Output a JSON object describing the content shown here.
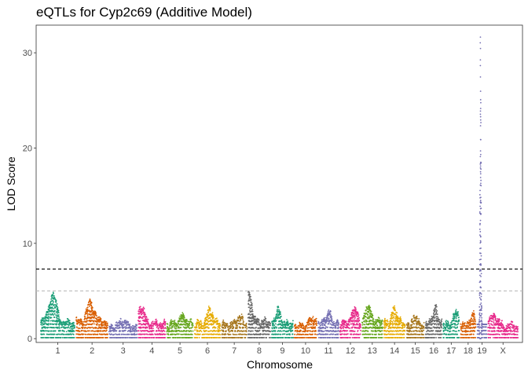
{
  "chart_data": {
    "type": "scatter",
    "title": "eQTLs for Cyp2c69 (Additive Model)",
    "xlabel": "Chromosome",
    "ylabel": "LOD Score",
    "ylim": [
      -0.4,
      32.9
    ],
    "yticks": [
      0,
      10,
      20,
      30
    ],
    "grid": false,
    "legend": "none",
    "thresholds": [
      {
        "lod": 7.3,
        "color": "#000000",
        "style": "dashed"
      },
      {
        "lod": 5.0,
        "color": "#bdbdbd",
        "style": "dashed"
      }
    ],
    "chromosomes": [
      {
        "name": "1",
        "length": 195,
        "color": "#1b9e77",
        "base": 1.6,
        "peak": 4.5,
        "peak_pos": 0.35
      },
      {
        "name": "2",
        "length": 182,
        "color": "#d95f02",
        "base": 1.7,
        "peak": 3.7,
        "peak_pos": 0.45
      },
      {
        "name": "3",
        "length": 160,
        "color": "#7570b3",
        "base": 1.2,
        "peak": 1.9,
        "peak_pos": 0.5
      },
      {
        "name": "4",
        "length": 157,
        "color": "#e7298a",
        "base": 1.5,
        "peak": 3.3,
        "peak_pos": 0.1
      },
      {
        "name": "5",
        "length": 152,
        "color": "#66a61e",
        "base": 1.5,
        "peak": 2.3,
        "peak_pos": 0.6
      },
      {
        "name": "6",
        "length": 150,
        "color": "#e6ab02",
        "base": 1.5,
        "peak": 3.0,
        "peak_pos": 0.6
      },
      {
        "name": "7",
        "length": 145,
        "color": "#a6761d",
        "base": 1.4,
        "peak": 2.3,
        "peak_pos": 0.7
      },
      {
        "name": "8",
        "length": 130,
        "color": "#666666",
        "base": 1.7,
        "peak": 4.6,
        "peak_pos": 0.05
      },
      {
        "name": "9",
        "length": 125,
        "color": "#1b9e77",
        "base": 1.5,
        "peak": 3.0,
        "peak_pos": 0.3
      },
      {
        "name": "10",
        "length": 130,
        "color": "#d95f02",
        "base": 1.3,
        "peak": 2.2,
        "peak_pos": 0.8
      },
      {
        "name": "11",
        "length": 122,
        "color": "#7570b3",
        "base": 1.6,
        "peak": 2.7,
        "peak_pos": 0.5
      },
      {
        "name": "12",
        "length": 120,
        "color": "#e7298a",
        "base": 1.6,
        "peak": 3.2,
        "peak_pos": 0.7
      },
      {
        "name": "13",
        "length": 120,
        "color": "#66a61e",
        "base": 1.8,
        "peak": 3.5,
        "peak_pos": 0.3
      },
      {
        "name": "14",
        "length": 125,
        "color": "#e6ab02",
        "base": 1.6,
        "peak": 3.1,
        "peak_pos": 0.5
      },
      {
        "name": "15",
        "length": 104,
        "color": "#a6761d",
        "base": 1.4,
        "peak": 2.3,
        "peak_pos": 0.5
      },
      {
        "name": "16",
        "length": 98,
        "color": "#666666",
        "base": 1.6,
        "peak": 3.3,
        "peak_pos": 0.6
      },
      {
        "name": "17",
        "length": 95,
        "color": "#1b9e77",
        "base": 1.5,
        "peak": 2.9,
        "peak_pos": 0.8
      },
      {
        "name": "18",
        "length": 91,
        "color": "#d95f02",
        "base": 1.4,
        "peak": 2.6,
        "peak_pos": 0.8
      },
      {
        "name": "19",
        "length": 61,
        "color": "#7570b3",
        "base": 1.5,
        "peak": 32.3,
        "peak_pos": 0.35
      },
      {
        "name": "X",
        "length": 171,
        "color": "#e7298a",
        "base": 1.3,
        "peak": 2.5,
        "peak_pos": 0.2
      }
    ]
  }
}
